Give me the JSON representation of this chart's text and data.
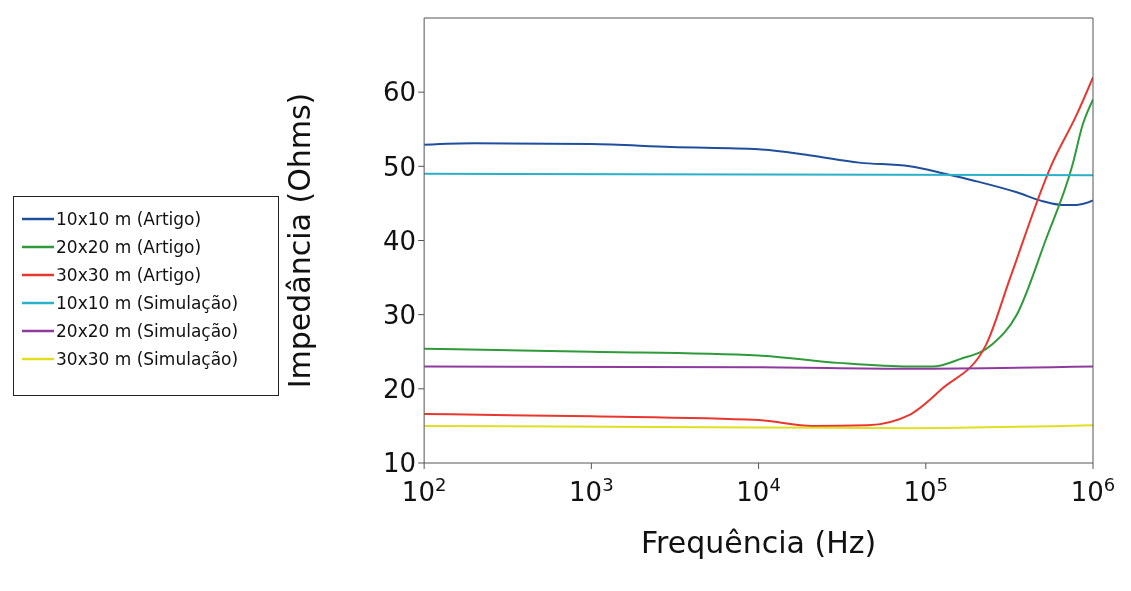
{
  "chart_data": {
    "type": "line",
    "xlabel": "Frequência (Hz)",
    "ylabel": "Impedância (Ohms)",
    "log": "x",
    "xlim": [
      100,
      1000000
    ],
    "ylim": [
      10,
      70
    ],
    "xticks": [
      {
        "value": 100,
        "label": "10$^{2}$"
      },
      {
        "value": 1000,
        "label": "10$^{3}$"
      },
      {
        "value": 10000,
        "label": "10$^{4}$"
      },
      {
        "value": 100000,
        "label": "10$^{5}$"
      },
      {
        "value": 1000000,
        "label": "10$^{6}$"
      }
    ],
    "yticks": [
      10,
      20,
      30,
      40,
      50,
      60
    ],
    "legend": "left",
    "marker": "none",
    "line_style": "solid",
    "series": [
      {
        "name": "10x10 m (Artigo)",
        "color": "#1f4e9c",
        "x": [
          100,
          200,
          1000,
          3000,
          10000,
          20000,
          40000,
          80000,
          130000,
          200000,
          350000,
          500000,
          650000,
          800000,
          1000000
        ],
        "values": [
          52.9,
          53.1,
          53,
          52.6,
          52.3,
          51.5,
          50.5,
          50,
          49,
          48,
          46.5,
          45.3,
          44.8,
          44.8,
          45.4
        ]
      },
      {
        "name": "20x20 m (Artigo)",
        "color": "#2e9a3a",
        "x": [
          100,
          1000,
          10000,
          30000,
          80000,
          110000,
          160000,
          250000,
          350000,
          520000,
          750000,
          870000,
          1000000
        ],
        "values": [
          25.4,
          25,
          24.5,
          23.5,
          23,
          23,
          24,
          26,
          30,
          40,
          50,
          55.7,
          59
        ]
      },
      {
        "name": "30x30 m (Artigo)",
        "color": "#e8372f",
        "x": [
          100,
          1000,
          10000,
          21000,
          45000,
          80000,
          125000,
          230000,
          320000,
          560000,
          800000,
          1000000
        ],
        "values": [
          16.6,
          16.3,
          15.8,
          15,
          15.1,
          16.5,
          20,
          26,
          35,
          50,
          57,
          62
        ]
      },
      {
        "name": "10x10 m (Simulação)",
        "color": "#2ab0c8",
        "x": [
          100,
          10000,
          1000000
        ],
        "values": [
          49,
          48.9,
          48.8
        ]
      },
      {
        "name": "20x20 m (Simulação)",
        "color": "#8e3a9e",
        "x": [
          100,
          10000,
          80000,
          1000000
        ],
        "values": [
          23,
          22.9,
          22.7,
          23
        ]
      },
      {
        "name": "30x30 m (Simulação)",
        "color": "#e0e020",
        "x": [
          100,
          10000,
          80000,
          1000000
        ],
        "values": [
          15,
          14.8,
          14.7,
          15.1
        ]
      }
    ]
  }
}
